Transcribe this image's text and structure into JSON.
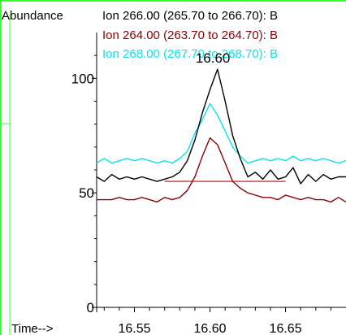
{
  "chart_data": {
    "type": "line",
    "ylabel": "Abundance",
    "xlabel": "Time-->",
    "xlim": [
      16.525,
      16.69
    ],
    "ylim": [
      0,
      120
    ],
    "x_ticks": [
      16.55,
      16.6,
      16.65
    ],
    "x_tick_labels": [
      "16.55",
      "16.60",
      "16.65"
    ],
    "y_ticks": [
      0,
      50,
      100
    ],
    "y_tick_labels": [
      "0",
      "50",
      "100"
    ],
    "grid": false,
    "legend_position": "top",
    "peak_annotation": {
      "text": "16.60",
      "x": 16.603,
      "y": 104
    },
    "baseline": {
      "x_start": 16.57,
      "x_end": 16.65,
      "y": 55,
      "color": "#cc0000"
    },
    "series": [
      {
        "name": "Ion 266.00 (265.70 to 266.70): B",
        "color": "#000000",
        "x": [
          16.525,
          16.53,
          16.535,
          16.54,
          16.545,
          16.55,
          16.555,
          16.56,
          16.565,
          16.57,
          16.575,
          16.58,
          16.585,
          16.59,
          16.595,
          16.6,
          16.605,
          16.61,
          16.615,
          16.62,
          16.625,
          16.63,
          16.635,
          16.64,
          16.645,
          16.65,
          16.655,
          16.66,
          16.665,
          16.67,
          16.675,
          16.68,
          16.685,
          16.69
        ],
        "y": [
          57,
          55,
          58,
          56,
          57,
          56,
          57,
          56,
          55,
          56,
          57,
          59,
          64,
          73,
          85,
          95,
          104,
          90,
          75,
          65,
          57,
          59,
          56,
          60,
          56,
          57,
          61,
          54,
          58,
          55,
          58,
          56,
          57,
          57
        ]
      },
      {
        "name": "Ion 264.00 (263.70 to 264.70): B",
        "color": "#8b0000",
        "x": [
          16.525,
          16.53,
          16.535,
          16.54,
          16.545,
          16.55,
          16.555,
          16.56,
          16.565,
          16.57,
          16.575,
          16.58,
          16.585,
          16.59,
          16.595,
          16.6,
          16.605,
          16.61,
          16.615,
          16.62,
          16.625,
          16.63,
          16.635,
          16.64,
          16.645,
          16.65,
          16.655,
          16.66,
          16.665,
          16.67,
          16.675,
          16.68,
          16.685,
          16.69
        ],
        "y": [
          47,
          47,
          47,
          48,
          47,
          47,
          48,
          47,
          46,
          48,
          47,
          48,
          51,
          57,
          66,
          74,
          71,
          63,
          55,
          52,
          50,
          49,
          48,
          48,
          47,
          49,
          48,
          47,
          48,
          47,
          47,
          46,
          48,
          46
        ]
      },
      {
        "name": "Ion 268.00 (267.70 to 268.70): B",
        "color": "#00e5ee",
        "x": [
          16.525,
          16.53,
          16.535,
          16.54,
          16.545,
          16.55,
          16.555,
          16.56,
          16.565,
          16.57,
          16.575,
          16.58,
          16.585,
          16.59,
          16.595,
          16.6,
          16.605,
          16.61,
          16.615,
          16.62,
          16.625,
          16.63,
          16.635,
          16.64,
          16.645,
          16.65,
          16.655,
          16.66,
          16.665,
          16.67,
          16.675,
          16.68,
          16.685,
          16.69
        ],
        "y": [
          63,
          65,
          63,
          64,
          65,
          64,
          65,
          64,
          63,
          64,
          63,
          65,
          68,
          76,
          82,
          89,
          84,
          77,
          70,
          66,
          63,
          64,
          65,
          64,
          65,
          64,
          66,
          64,
          65,
          64,
          65,
          64,
          63,
          64
        ]
      }
    ]
  }
}
